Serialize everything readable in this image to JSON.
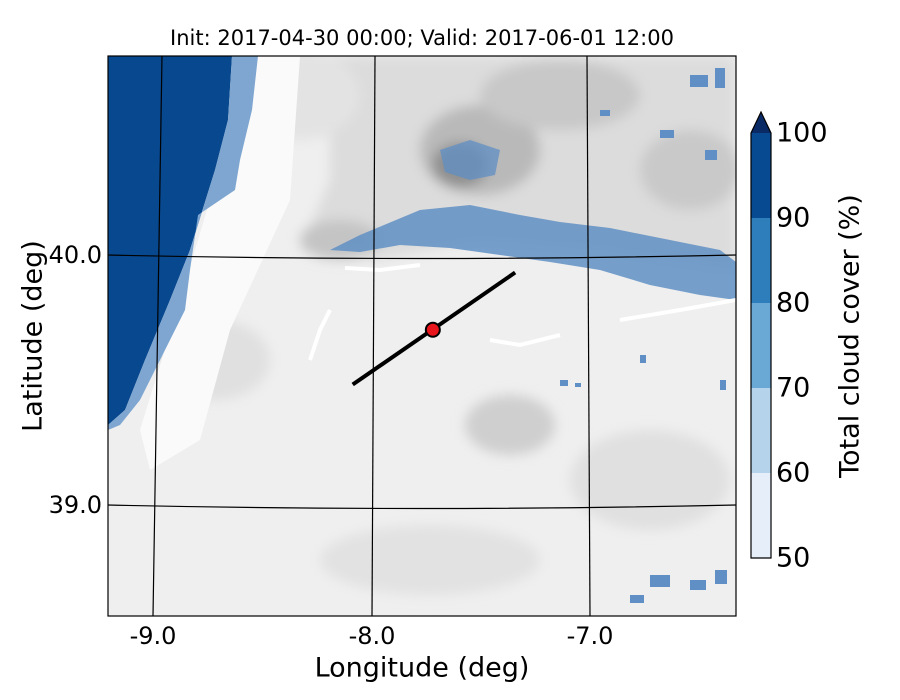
{
  "title": "Init: 2017-04-30 00:00; Valid: 2017-06-01 12:00",
  "x_axis": {
    "label": "Longitude (deg)",
    "ticks": [
      "-9.0",
      "-8.0",
      "-7.0"
    ]
  },
  "y_axis": {
    "label": "Latitude (deg)",
    "ticks": [
      "40.0",
      "39.0"
    ]
  },
  "colorbar": {
    "label": "Total cloud cover (%)",
    "ticks": [
      "100",
      "90",
      "80",
      "70",
      "60",
      "50"
    ],
    "extend": "max",
    "colors": [
      "#e6eff9",
      "#b5d3ea",
      "#6aa8d6",
      "#2f7ebc",
      "#084a92"
    ]
  },
  "map": {
    "lon_range": [
      -9.25,
      -6.35
    ],
    "lat_range": [
      38.55,
      40.8
    ],
    "graticule_lon": [
      -9.0,
      -8.0,
      -7.0
    ],
    "graticule_lat": [
      39.0,
      40.0
    ],
    "ocean_color": "#08488f",
    "transect": {
      "start": [
        -8.12,
        39.48
      ],
      "end": [
        -7.37,
        39.93
      ]
    },
    "marker": {
      "lon": -7.75,
      "lat": 39.7,
      "color": "#e8141b"
    }
  }
}
